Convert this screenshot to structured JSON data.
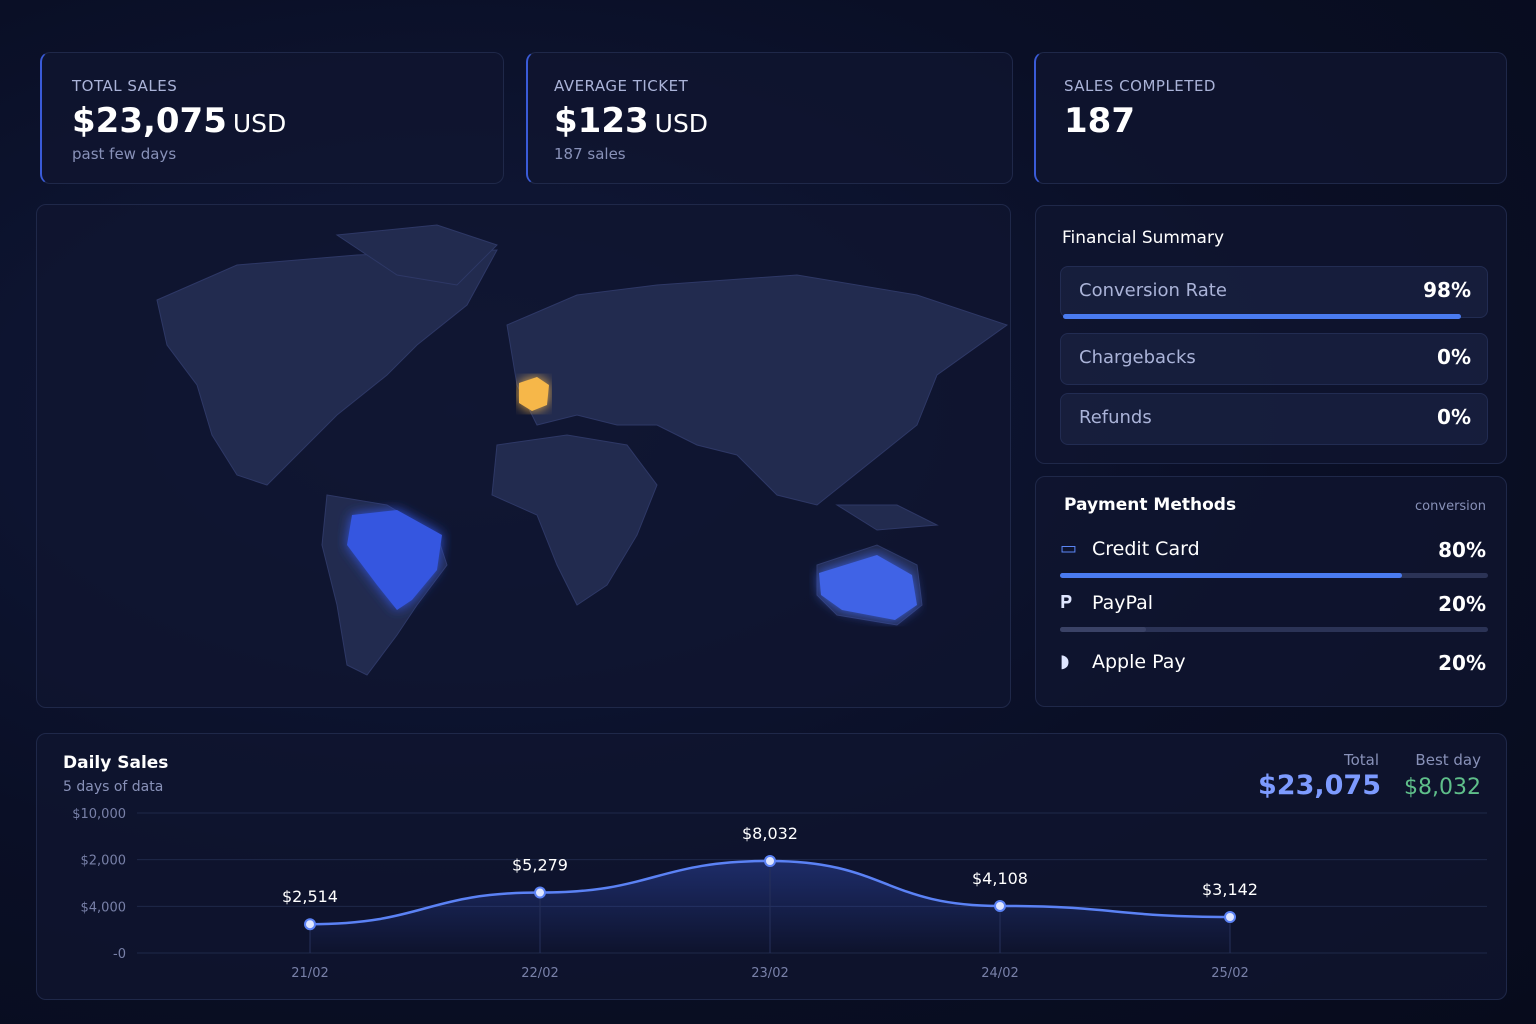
{
  "kpis": [
    {
      "label": "TOTAL SALES",
      "value": "$23,075",
      "unit": "USD",
      "note": "past few days"
    },
    {
      "label": "AVERAGE TICKET",
      "value": "$123",
      "unit": "USD",
      "note": "187 sales"
    },
    {
      "label": "SALES COMPLETED",
      "value": "187"
    }
  ],
  "financial_summary": {
    "title": "Financial Summary",
    "rows": [
      {
        "label": "Conversion Rate",
        "value": 98,
        "value_label": "98%"
      },
      {
        "label": "Chargebacks",
        "value": 0,
        "value_label": "0%"
      },
      {
        "label": "Refunds",
        "value": 0,
        "value_label": "0%"
      }
    ]
  },
  "payment_methods": {
    "title": "Payment Methods",
    "subtitle": "conversion",
    "items": [
      {
        "name": "Credit Card",
        "value": 80,
        "value_label": "80%"
      },
      {
        "name": "PayPal",
        "value": 20,
        "value_label": "20%"
      },
      {
        "name": "Apple Pay",
        "value": 20,
        "value_label": "20%"
      }
    ]
  },
  "daily_sales": {
    "title": "Daily Sales",
    "subtitle": "5 days of data",
    "total_label": "Total",
    "total": "$23,075",
    "best_label": "Best day",
    "best": "$8,032",
    "y_axis_labels": [
      "$10,000",
      "$2,000",
      "$4,000",
      "-0"
    ],
    "categories": [
      "21/02",
      "22/02",
      "23/02",
      "24/02",
      "25/02"
    ],
    "values": [
      2514,
      5279,
      8032,
      4108,
      3142
    ],
    "value_labels": [
      "$2,514",
      "$5,279",
      "$8,032",
      "$4,108",
      "$3,142"
    ]
  }
}
